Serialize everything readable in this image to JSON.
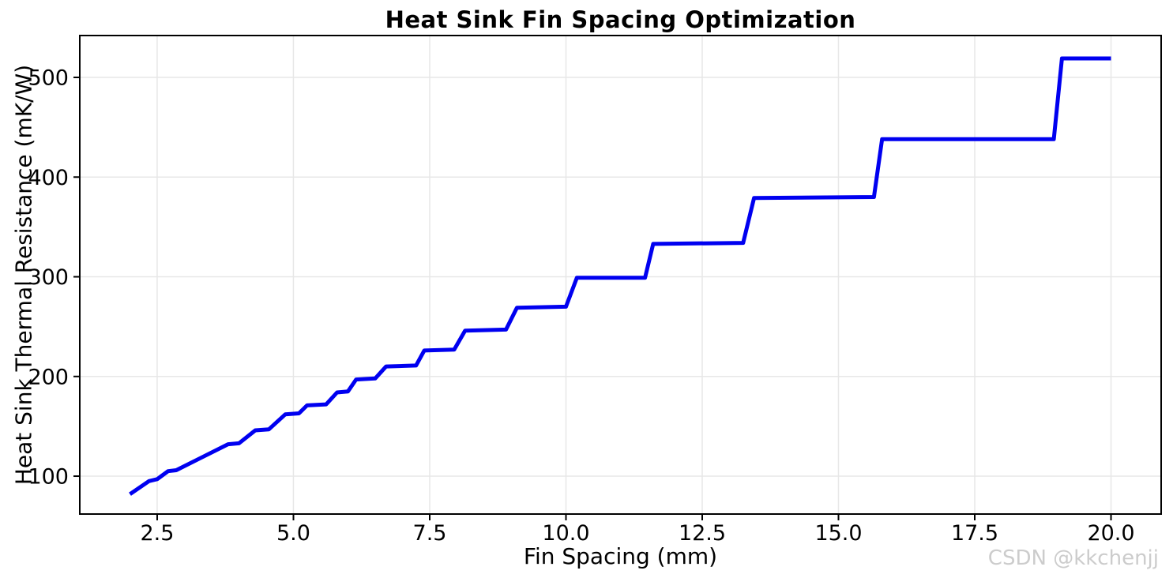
{
  "figure": {
    "background": "#ffffff"
  },
  "watermark": {
    "text": "CSDN @kkchenjj",
    "color": "#cccccc"
  },
  "style": {
    "grid_color": "#e7e7e7",
    "spine_color": "#000000",
    "tick_color": "#000000",
    "line_color": "#0000f0",
    "line_width": 5
  },
  "chart_data": {
    "type": "line",
    "title": "Heat Sink Fin Spacing Optimization",
    "xlabel": "Fin Spacing (mm)",
    "ylabel": "Heat Sink Thermal Resistance (mK/W)",
    "xlim": [
      1.08,
      20.92
    ],
    "ylim": [
      62,
      542
    ],
    "grid": true,
    "legend_position": "none",
    "xticks": {
      "values": [
        2.5,
        5.0,
        7.5,
        10.0,
        12.5,
        15.0,
        17.5,
        20.0
      ],
      "labels": [
        "2.5",
        "5.0",
        "7.5",
        "10.0",
        "12.5",
        "15.0",
        "17.5",
        "20.0"
      ]
    },
    "yticks": {
      "values": [
        100,
        200,
        300,
        400,
        500
      ],
      "labels": [
        "100",
        "200",
        "300",
        "400",
        "500"
      ]
    },
    "series": [
      {
        "name": "heat-sink-thermal-resistance",
        "color": "#0000f0",
        "points": [
          [
            2.0,
            82
          ],
          [
            2.35,
            95
          ],
          [
            2.5,
            97
          ],
          [
            2.7,
            105
          ],
          [
            2.85,
            106
          ],
          [
            3.8,
            132
          ],
          [
            4.0,
            133
          ],
          [
            4.3,
            146
          ],
          [
            4.55,
            147
          ],
          [
            4.85,
            162
          ],
          [
            5.1,
            163
          ],
          [
            5.25,
            171
          ],
          [
            5.6,
            172
          ],
          [
            5.8,
            184
          ],
          [
            6.0,
            185
          ],
          [
            6.15,
            197
          ],
          [
            6.5,
            198
          ],
          [
            6.7,
            210
          ],
          [
            7.25,
            211
          ],
          [
            7.4,
            226
          ],
          [
            7.95,
            227
          ],
          [
            8.15,
            246
          ],
          [
            8.9,
            247
          ],
          [
            9.1,
            269
          ],
          [
            10.0,
            270
          ],
          [
            10.2,
            299
          ],
          [
            11.45,
            299
          ],
          [
            11.6,
            333
          ],
          [
            13.25,
            334
          ],
          [
            13.45,
            379
          ],
          [
            15.65,
            380
          ],
          [
            15.8,
            438
          ],
          [
            18.95,
            438
          ],
          [
            19.1,
            519
          ],
          [
            20.0,
            519
          ]
        ]
      }
    ]
  }
}
